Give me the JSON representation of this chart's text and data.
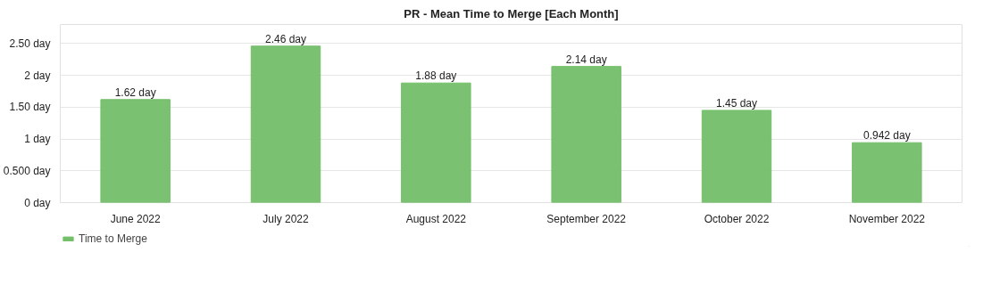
{
  "chart_data": {
    "type": "bar",
    "title": "PR - Mean Time to Merge [Each Month]",
    "categories": [
      "June 2022",
      "July 2022",
      "August 2022",
      "September 2022",
      "October 2022",
      "November 2022"
    ],
    "series": [
      {
        "name": "Time to Merge",
        "color": "#73bf69",
        "values": [
          1.62,
          2.46,
          1.88,
          2.14,
          1.45,
          0.942
        ],
        "value_labels": [
          "1.62 day",
          "2.46 day",
          "1.88 day",
          "2.14 day",
          "1.45 day",
          "0.942 day"
        ]
      }
    ],
    "ylim": [
      0,
      2.8
    ],
    "yticks": [
      {
        "value": 0,
        "label": "0 day"
      },
      {
        "value": 0.5,
        "label": "0.500 day"
      },
      {
        "value": 1,
        "label": "1 day"
      },
      {
        "value": 1.5,
        "label": "1.50 day"
      },
      {
        "value": 2,
        "label": "2 day"
      },
      {
        "value": 2.5,
        "label": "2.50 day"
      }
    ],
    "grid": "y",
    "legend": "bottom left"
  }
}
